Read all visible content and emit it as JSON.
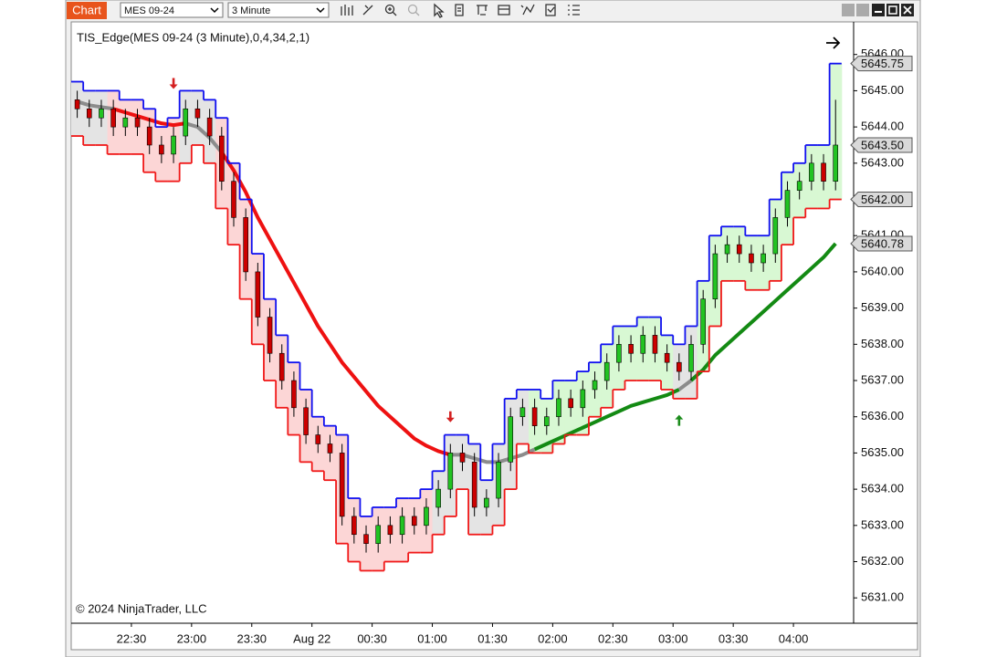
{
  "toolbar": {
    "tab": "Chart",
    "instrument": "MES 09-24",
    "interval": "3 Minute"
  },
  "chart_data": {
    "type": "candlestick",
    "title": "TIS_Edge(MES 09-24 (3 Minute),0,4,34,2,1)",
    "annotation": "© 2024 NinjaTrader, LLC",
    "x": [
      1,
      3,
      5,
      7,
      9,
      11,
      13,
      15,
      17,
      19,
      21,
      23,
      25,
      27,
      29,
      31,
      33,
      35,
      37,
      39,
      41,
      43,
      45,
      47,
      49,
      51,
      53,
      55,
      57,
      59,
      61,
      63,
      65,
      67,
      69,
      71,
      73,
      75,
      77,
      79,
      81,
      83,
      85,
      87,
      89,
      91,
      93,
      95,
      97,
      99,
      101,
      103,
      105,
      107,
      109,
      111,
      113,
      115,
      117,
      119,
      121,
      123,
      125,
      127
    ],
    "open": [
      5644.75,
      5644.5,
      5644.25,
      5644.5,
      5644.0,
      5644.25,
      5644.0,
      5643.5,
      5643.25,
      5643.75,
      5644.5,
      5644.25,
      5643.75,
      5642.5,
      5641.5,
      5640.0,
      5638.75,
      5637.75,
      5637.0,
      5636.25,
      5635.5,
      5635.25,
      5635.0,
      5633.25,
      5632.75,
      5632.5,
      5633.0,
      5632.75,
      5633.25,
      5633.0,
      5633.5,
      5634.0,
      5635.0,
      5634.75,
      5633.5,
      5633.75,
      5634.75,
      5636.0,
      5636.25,
      5635.75,
      5636.0,
      5636.5,
      5636.25,
      5636.75,
      5637.0,
      5637.5,
      5638.0,
      5637.75,
      5638.25,
      5637.75,
      5637.5,
      5637.25,
      5638.0,
      5639.25,
      5640.5,
      5640.75,
      5640.5,
      5640.25,
      5640.5,
      5641.5,
      5642.25,
      5642.5,
      5643.0,
      5642.5
    ],
    "high": [
      5645.0,
      5644.75,
      5644.75,
      5644.75,
      5644.5,
      5644.5,
      5644.25,
      5643.75,
      5644.0,
      5644.75,
      5644.75,
      5644.5,
      5644.0,
      5642.75,
      5641.75,
      5640.25,
      5639.0,
      5638.0,
      5637.25,
      5636.5,
      5635.75,
      5635.5,
      5635.25,
      5633.5,
      5633.0,
      5633.25,
      5633.25,
      5633.5,
      5633.5,
      5633.75,
      5634.25,
      5635.25,
      5635.25,
      5635.0,
      5634.0,
      5635.0,
      5636.25,
      5636.5,
      5636.5,
      5636.25,
      5636.75,
      5636.75,
      5637.0,
      5637.25,
      5637.75,
      5638.25,
      5638.25,
      5638.5,
      5638.5,
      5638.0,
      5637.75,
      5638.25,
      5639.5,
      5640.75,
      5641.0,
      5641.0,
      5640.75,
      5640.75,
      5641.75,
      5642.5,
      5642.75,
      5643.25,
      5643.25,
      5644.75
    ],
    "low": [
      5644.25,
      5644.0,
      5644.0,
      5643.75,
      5643.75,
      5643.75,
      5643.25,
      5643.0,
      5643.0,
      5643.5,
      5644.0,
      5643.5,
      5642.25,
      5641.25,
      5639.75,
      5638.5,
      5637.5,
      5636.75,
      5636.0,
      5635.25,
      5635.0,
      5634.75,
      5633.0,
      5632.5,
      5632.25,
      5632.25,
      5632.5,
      5632.5,
      5632.75,
      5632.75,
      5633.25,
      5633.75,
      5634.5,
      5633.25,
      5633.25,
      5633.5,
      5634.5,
      5635.75,
      5635.5,
      5635.5,
      5635.75,
      5636.0,
      5636.0,
      5636.5,
      5636.75,
      5637.25,
      5637.5,
      5637.5,
      5637.5,
      5637.25,
      5637.0,
      5637.0,
      5637.75,
      5639.0,
      5640.25,
      5640.25,
      5640.0,
      5640.0,
      5640.25,
      5641.25,
      5642.0,
      5642.25,
      5642.25,
      5642.25
    ],
    "close": [
      5644.5,
      5644.25,
      5644.5,
      5644.0,
      5644.25,
      5644.0,
      5643.5,
      5643.25,
      5643.75,
      5644.5,
      5644.25,
      5643.75,
      5642.5,
      5641.5,
      5640.0,
      5638.75,
      5637.75,
      5637.0,
      5636.25,
      5635.5,
      5635.25,
      5635.0,
      5633.25,
      5632.75,
      5632.5,
      5633.0,
      5632.75,
      5633.25,
      5633.0,
      5633.5,
      5634.0,
      5635.0,
      5634.75,
      5633.5,
      5633.75,
      5634.75,
      5636.0,
      5636.25,
      5635.75,
      5636.0,
      5636.5,
      5636.25,
      5636.75,
      5637.0,
      5637.5,
      5638.0,
      5637.75,
      5638.25,
      5637.75,
      5637.5,
      5637.25,
      5638.0,
      5639.25,
      5640.5,
      5640.75,
      5640.5,
      5640.25,
      5640.5,
      5641.5,
      5642.25,
      5642.5,
      5643.0,
      5642.5,
      5643.5
    ],
    "up_color": "#22c322",
    "down_color": "#cc0000",
    "upper_band": {
      "color": "#1010f0",
      "values": [
        5645.25,
        5645.0,
        5645.0,
        5645.0,
        5644.75,
        5644.75,
        5644.5,
        5644.0,
        5644.25,
        5645.0,
        5645.0,
        5644.75,
        5644.25,
        5643.0,
        5642.0,
        5640.5,
        5639.25,
        5638.25,
        5637.5,
        5636.75,
        5636.0,
        5635.75,
        5635.5,
        5633.75,
        5633.25,
        5633.5,
        5633.5,
        5633.75,
        5633.75,
        5634.0,
        5634.5,
        5635.5,
        5635.5,
        5635.25,
        5634.25,
        5635.25,
        5636.5,
        5636.75,
        5636.75,
        5636.5,
        5637.0,
        5637.0,
        5637.25,
        5637.5,
        5638.0,
        5638.5,
        5638.5,
        5638.75,
        5638.75,
        5638.25,
        5638.0,
        5638.5,
        5639.75,
        5641.0,
        5641.25,
        5641.25,
        5641.0,
        5641.0,
        5642.0,
        5642.75,
        5643.0,
        5643.5,
        5643.5,
        5645.75
      ]
    },
    "lower_band": {
      "color": "#f01818",
      "values": [
        5643.75,
        5643.5,
        5643.5,
        5643.25,
        5643.25,
        5643.25,
        5642.75,
        5642.5,
        5642.5,
        5643.0,
        5643.5,
        5643.0,
        5641.75,
        5640.75,
        5639.25,
        5638.0,
        5637.0,
        5636.25,
        5635.5,
        5634.75,
        5634.5,
        5634.25,
        5632.5,
        5632.0,
        5631.75,
        5631.75,
        5632.0,
        5632.0,
        5632.25,
        5632.25,
        5632.75,
        5633.25,
        5634.0,
        5632.75,
        5632.75,
        5633.0,
        5634.0,
        5635.25,
        5635.0,
        5635.0,
        5635.25,
        5635.5,
        5635.5,
        5636.0,
        5636.25,
        5636.75,
        5637.0,
        5637.0,
        5637.0,
        5636.75,
        5636.5,
        5636.5,
        5637.25,
        5638.5,
        5639.75,
        5639.75,
        5639.5,
        5639.5,
        5639.75,
        5640.75,
        5641.5,
        5641.75,
        5641.75,
        5642.0
      ]
    },
    "band_colors": [
      "#e4e4e4",
      "#e4e4e4",
      "#e4e4e4",
      "#fcd6d6",
      "#fcd6d6",
      "#fcd6d6",
      "#fcd6d6",
      "#fcd6d6",
      "#fcd6d6",
      "#e4e4e4",
      "#e4e4e4",
      "#e4e4e4",
      "#fcd6d6",
      "#fcd6d6",
      "#fcd6d6",
      "#fcd6d6",
      "#fcd6d6",
      "#fcd6d6",
      "#fcd6d6",
      "#fcd6d6",
      "#fcd6d6",
      "#fcd6d6",
      "#fcd6d6",
      "#fcd6d6",
      "#fcd6d6",
      "#fcd6d6",
      "#fcd6d6",
      "#fcd6d6",
      "#fcd6d6",
      "#fcd6d6",
      "#e4e4e4",
      "#e4e4e4",
      "#e4e4e4",
      "#e4e4e4",
      "#e4e4e4",
      "#e4e4e4",
      "#e4e4e4",
      "#e4e4e4",
      "#d8f8d3",
      "#d8f8d3",
      "#d8f8d3",
      "#d8f8d3",
      "#d8f8d3",
      "#d8f8d3",
      "#d8f8d3",
      "#d8f8d3",
      "#d8f8d3",
      "#d8f8d3",
      "#d8f8d3",
      "#d8f8d3",
      "#e4e4e4",
      "#e4e4e4",
      "#d8f8d3",
      "#d8f8d3",
      "#d8f8d3",
      "#d8f8d3",
      "#d8f8d3",
      "#d8f8d3",
      "#d8f8d3",
      "#d8f8d3",
      "#d8f8d3",
      "#d8f8d3",
      "#d8f8d3",
      "#d8f8d3"
    ],
    "ema": {
      "values": [
        5644.7,
        5644.6,
        5644.55,
        5644.5,
        5644.4,
        5644.3,
        5644.2,
        5644.1,
        5644.05,
        5644.1,
        5644.0,
        5643.7,
        5643.3,
        5642.8,
        5642.2,
        5641.5,
        5640.9,
        5640.3,
        5639.7,
        5639.1,
        5638.5,
        5638.0,
        5637.5,
        5637.1,
        5636.7,
        5636.3,
        5636.0,
        5635.7,
        5635.4,
        5635.2,
        5635.05,
        5634.95,
        5634.95,
        5634.85,
        5634.75,
        5634.75,
        5634.85,
        5634.95,
        5635.1,
        5635.25,
        5635.4,
        5635.55,
        5635.7,
        5635.85,
        5636.0,
        5636.15,
        5636.3,
        5636.4,
        5636.5,
        5636.6,
        5636.75,
        5637.0,
        5637.3,
        5637.7,
        5638.0,
        5638.3,
        5638.6,
        5638.9,
        5639.2,
        5639.5,
        5639.8,
        5640.1,
        5640.4,
        5640.78
      ],
      "colors": [
        "#8c8c8c",
        "#8c8c8c",
        "#8c8c8c",
        "#ee1111",
        "#ee1111",
        "#ee1111",
        "#ee1111",
        "#ee1111",
        "#ee1111",
        "#8c8c8c",
        "#8c8c8c",
        "#8c8c8c",
        "#ee1111",
        "#ee1111",
        "#ee1111",
        "#ee1111",
        "#ee1111",
        "#ee1111",
        "#ee1111",
        "#ee1111",
        "#ee1111",
        "#ee1111",
        "#ee1111",
        "#ee1111",
        "#ee1111",
        "#ee1111",
        "#ee1111",
        "#ee1111",
        "#ee1111",
        "#ee1111",
        "#ee1111",
        "#8c8c8c",
        "#8c8c8c",
        "#8c8c8c",
        "#8c8c8c",
        "#8c8c8c",
        "#8c8c8c",
        "#8c8c8c",
        "#138a13",
        "#138a13",
        "#138a13",
        "#138a13",
        "#138a13",
        "#138a13",
        "#138a13",
        "#138a13",
        "#138a13",
        "#138a13",
        "#138a13",
        "#138a13",
        "#8c8c8c",
        "#138a13",
        "#138a13",
        "#138a13",
        "#138a13",
        "#138a13",
        "#138a13",
        "#138a13",
        "#138a13",
        "#138a13",
        "#138a13",
        "#138a13",
        "#138a13",
        "#138a13"
      ]
    },
    "signals": [
      {
        "x": 17,
        "y": 5645.2,
        "direction": "down",
        "color": "#d42020"
      },
      {
        "x": 63,
        "y": 5636.0,
        "direction": "down",
        "color": "#d42020"
      },
      {
        "x": 101,
        "y": 5635.9,
        "direction": "up",
        "color": "#1c8c1c"
      }
    ],
    "price_markers": [
      {
        "value": 5645.75,
        "label": "5645.75"
      },
      {
        "value": 5643.5,
        "label": "5643.50"
      },
      {
        "value": 5642.0,
        "label": "5642.00"
      },
      {
        "value": 5640.78,
        "label": "5640.78"
      }
    ],
    "xlim": [
      0,
      130
    ],
    "xticks": [
      {
        "value": 10,
        "label": "22:30"
      },
      {
        "value": 20,
        "label": "23:00"
      },
      {
        "value": 30,
        "label": "23:30"
      },
      {
        "value": 40,
        "label": "Aug 22"
      },
      {
        "value": 50,
        "label": "00:30"
      },
      {
        "value": 60,
        "label": "01:00"
      },
      {
        "value": 70,
        "label": "01:30"
      },
      {
        "value": 80,
        "label": "02:00"
      },
      {
        "value": 90,
        "label": "02:30"
      },
      {
        "value": 100,
        "label": "03:00"
      },
      {
        "value": 110,
        "label": "03:30"
      },
      {
        "value": 120,
        "label": "04:00"
      }
    ],
    "ylim": [
      5630.3,
      5646.9
    ],
    "yticks": [
      {
        "value": 5631,
        "label": "5631.00"
      },
      {
        "value": 5632,
        "label": "5632.00"
      },
      {
        "value": 5633,
        "label": "5633.00"
      },
      {
        "value": 5634,
        "label": "5634.00"
      },
      {
        "value": 5635,
        "label": "5635.00"
      },
      {
        "value": 5636,
        "label": "5636.00"
      },
      {
        "value": 5637,
        "label": "5637.00"
      },
      {
        "value": 5638,
        "label": "5638.00"
      },
      {
        "value": 5639,
        "label": "5639.00"
      },
      {
        "value": 5640,
        "label": "5640.00"
      },
      {
        "value": 5641,
        "label": "5641.00"
      },
      {
        "value": 5642,
        "label": "5642.00"
      },
      {
        "value": 5643,
        "label": "5643.00"
      },
      {
        "value": 5644,
        "label": "5644.00"
      },
      {
        "value": 5645,
        "label": "5645.00"
      },
      {
        "value": 5646,
        "label": "5646.00"
      }
    ]
  }
}
